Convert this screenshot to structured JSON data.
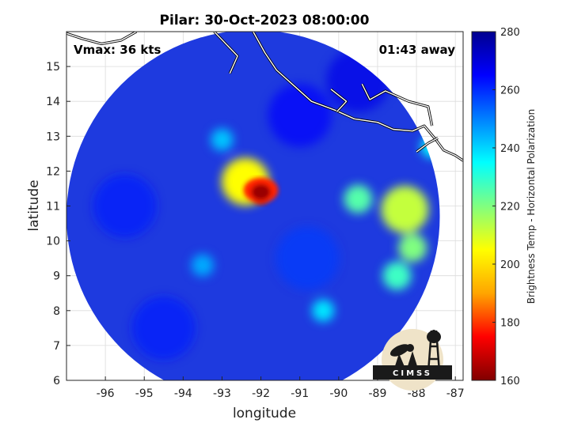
{
  "chart_data": {
    "type": "heatmap",
    "title": "Pilar: 30-Oct-2023 08:00:00",
    "xlabel": "longitude",
    "ylabel": "latitude",
    "xlim": [
      -97,
      -86.8
    ],
    "ylim": [
      6,
      16
    ],
    "xticks": [
      "-96",
      "-95",
      "-94",
      "-93",
      "-92",
      "-91",
      "-90",
      "-89",
      "-88",
      "-87"
    ],
    "yticks": [
      "6",
      "7",
      "8",
      "9",
      "10",
      "11",
      "12",
      "13",
      "14",
      "15"
    ],
    "grid": true,
    "annotations": {
      "left": "Vmax: 36 kts",
      "right": "01:43 away"
    },
    "colorbar": {
      "label": "Brightness Temp - Horizontal Polarization",
      "min": 160,
      "max": 280,
      "ticks": [
        "280",
        "260",
        "240",
        "220",
        "200",
        "180",
        "160"
      ],
      "colormap": [
        "#800000",
        "#ff0000",
        "#ffa500",
        "#ffff00",
        "#80ff80",
        "#00ffff",
        "#0080ff",
        "#0000ff",
        "#00008f"
      ]
    },
    "swath": {
      "center": [
        -92.2,
        10.7
      ],
      "radius_deg": 4.8
    },
    "features": [
      {
        "name": "core",
        "lon": -92.0,
        "lat": 11.4,
        "tb": 165
      },
      {
        "name": "inner ring",
        "lon": -92.4,
        "lat": 11.7,
        "tb": 205
      },
      {
        "name": "east band",
        "lon": -89.5,
        "lat": 11.2,
        "tb": 225
      },
      {
        "name": "east band",
        "lon": -88.3,
        "lat": 10.9,
        "tb": 212
      },
      {
        "name": "east band",
        "lon": -88.1,
        "lat": 9.8,
        "tb": 220
      },
      {
        "name": "east band",
        "lon": -88.5,
        "lat": 9.0,
        "tb": 228
      },
      {
        "name": "coast",
        "lon": -87.6,
        "lat": 12.7,
        "tb": 235
      },
      {
        "name": "south band",
        "lon": -90.4,
        "lat": 8.0,
        "tb": 238
      },
      {
        "name": "southwest",
        "lon": -93.5,
        "lat": 9.3,
        "tb": 245
      },
      {
        "name": "north",
        "lon": -93.0,
        "lat": 12.9,
        "tb": 242
      }
    ]
  },
  "logo": {
    "text": "CIMSS"
  }
}
